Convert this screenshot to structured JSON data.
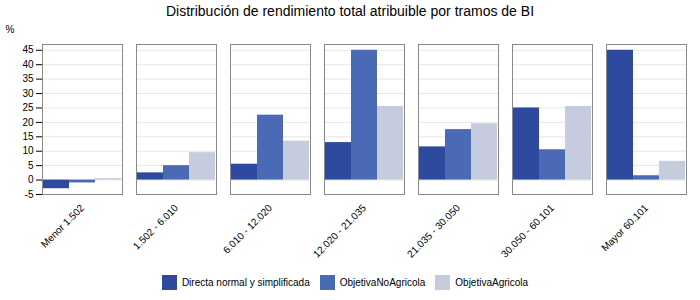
{
  "chart_data": {
    "type": "bar",
    "title": "Distribución de rendimiento total atribuible por tramos de BI",
    "ylabel": "%",
    "categories": [
      "Menor 1.502",
      "1.502 - 6.010",
      "6.010 - 12.020",
      "12.020 - 21.035",
      "21.035 - 30.050",
      "30.050 - 60.101",
      "Mayor 60.101"
    ],
    "series": [
      {
        "name": "Directa normal y simplificada",
        "color": "#2E4A9E",
        "values": [
          -3.0,
          2.5,
          5.5,
          13.0,
          11.5,
          25.0,
          45.0
        ]
      },
      {
        "name": "ObjetivaNoAgricola",
        "color": "#4B6AB5",
        "values": [
          -1.0,
          5.0,
          22.5,
          45.0,
          17.5,
          10.5,
          1.5
        ]
      },
      {
        "name": "ObjetivaAgricola",
        "color": "#C5CCDD",
        "values": [
          0.5,
          9.5,
          13.5,
          25.5,
          19.5,
          25.5,
          6.5
        ]
      }
    ],
    "ylim": [
      -5,
      47
    ],
    "yticks": [
      -5,
      0,
      5,
      10,
      15,
      20,
      25,
      30,
      35,
      40,
      45
    ],
    "grid": true,
    "legend": "bottom"
  }
}
